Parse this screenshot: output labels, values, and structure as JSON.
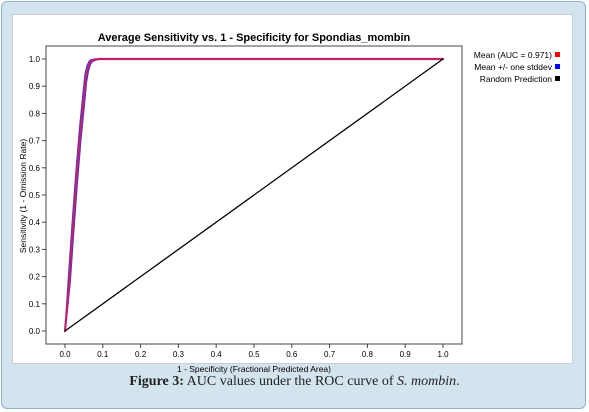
{
  "colors": {
    "mean": "#ff0000",
    "stddev": "#0000ff",
    "random": "#000000",
    "mean_line": "#c0206e",
    "stddev_line": "#3a3ad8"
  },
  "chart_data": {
    "type": "line",
    "title": "Average Sensitivity vs. 1 - Specificity for Spondias_mombin",
    "xlabel": "1 - Specificity (Fractional Predicted Area)",
    "ylabel": "Sensitivity (1 - Omission Rate)",
    "xlim": [
      0,
      1
    ],
    "ylim": [
      0,
      1
    ],
    "xticks": [
      "0.0",
      "0.1",
      "0.2",
      "0.3",
      "0.4",
      "0.5",
      "0.6",
      "0.7",
      "0.8",
      "0.9",
      "1.0"
    ],
    "yticks": [
      "0.0",
      "0.1",
      "0.2",
      "0.3",
      "0.4",
      "0.5",
      "0.6",
      "0.7",
      "0.8",
      "0.9",
      "1.0"
    ],
    "legend_position": "right-outside-top",
    "legend": [
      {
        "label": "Mean (AUC = 0.971)",
        "color_key": "mean"
      },
      {
        "label": "Mean +/- one stddev",
        "color_key": "stddev"
      },
      {
        "label": "Random Prediction",
        "color_key": "random"
      }
    ],
    "series": [
      {
        "name": "Mean (AUC = 0.971)",
        "x": [
          0,
          0.005,
          0.012,
          0.02,
          0.03,
          0.04,
          0.05,
          0.055,
          0.06,
          0.065,
          0.07,
          0.08,
          0.09,
          0.1,
          0.2,
          0.4,
          0.6,
          0.8,
          1.0
        ],
        "y": [
          0,
          0.08,
          0.2,
          0.36,
          0.55,
          0.72,
          0.86,
          0.93,
          0.965,
          0.985,
          0.993,
          0.998,
          1.0,
          1.0,
          1.0,
          1.0,
          1.0,
          1.0,
          1.0
        ]
      },
      {
        "name": "Mean +/- one stddev (upper)",
        "x": [
          0,
          0.004,
          0.01,
          0.018,
          0.028,
          0.038,
          0.048,
          0.053,
          0.058,
          0.063,
          0.068,
          0.078,
          0.088,
          0.1,
          1.0
        ],
        "y": [
          0,
          0.09,
          0.22,
          0.38,
          0.57,
          0.74,
          0.88,
          0.945,
          0.975,
          0.99,
          0.997,
          1.0,
          1.0,
          1.0,
          1.0
        ]
      },
      {
        "name": "Mean +/- one stddev (lower)",
        "x": [
          0,
          0.006,
          0.014,
          0.022,
          0.032,
          0.042,
          0.052,
          0.057,
          0.062,
          0.067,
          0.072,
          0.082,
          0.092,
          0.1,
          1.0
        ],
        "y": [
          0,
          0.07,
          0.18,
          0.34,
          0.53,
          0.7,
          0.84,
          0.915,
          0.955,
          0.978,
          0.99,
          0.996,
          0.999,
          1.0,
          1.0
        ]
      },
      {
        "name": "Random Prediction",
        "x": [
          0,
          1
        ],
        "y": [
          0,
          1
        ]
      }
    ]
  },
  "caption": {
    "label": "Figure 3:",
    "text": " AUC values under the ROC curve of ",
    "species": "S. mombin",
    "end": "."
  }
}
